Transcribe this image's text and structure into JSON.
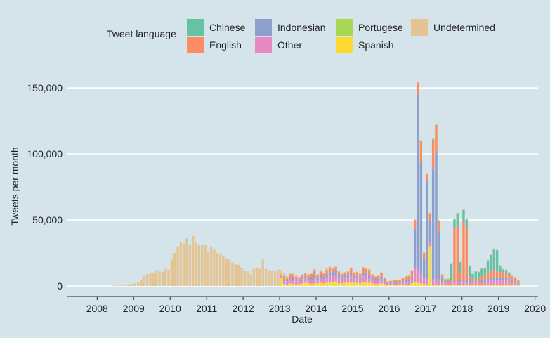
{
  "chart_data": {
    "type": "bar",
    "stacked": true,
    "xlabel": "Date",
    "ylabel": "Tweets per month",
    "ylim": [
      0,
      165000
    ],
    "yticks": [
      0,
      50000,
      100000,
      150000
    ],
    "ytick_labels": [
      "0",
      "50,000",
      "100,000",
      "150,000"
    ],
    "xlim": [
      "2007-03-01",
      "2020-02-01"
    ],
    "xticks": [
      "2008",
      "2009",
      "2010",
      "2011",
      "2012",
      "2013",
      "2014",
      "2015",
      "2016",
      "2017",
      "2018",
      "2019",
      "2020"
    ],
    "grid": "horizontal",
    "legend_title": "Tweet language",
    "legend_placement": "top",
    "series_order": [
      "Spanish",
      "Portugese",
      "Other",
      "Indonesian",
      "English",
      "Chinese",
      "Undetermined"
    ],
    "legend": [
      {
        "name": "Chinese",
        "color": "#66c2a5"
      },
      {
        "name": "English",
        "color": "#fc8d62"
      },
      {
        "name": "Indonesian",
        "color": "#8da0cb"
      },
      {
        "name": "Other",
        "color": "#e78ac3"
      },
      {
        "name": "Portugese",
        "color": "#a6d854"
      },
      {
        "name": "Spanish",
        "color": "#ffd92f"
      },
      {
        "name": "Undetermined",
        "color": "#e5c494"
      }
    ],
    "start_month": "2008-06",
    "monthly": [
      [
        0,
        0,
        0,
        0,
        0,
        0,
        400
      ],
      [
        0,
        0,
        0,
        0,
        0,
        0,
        500
      ],
      [
        0,
        0,
        0,
        0,
        0,
        0,
        700
      ],
      [
        0,
        0,
        0,
        0,
        0,
        0,
        900
      ],
      [
        0,
        0,
        0,
        0,
        0,
        0,
        1000
      ],
      [
        0,
        0,
        0,
        0,
        0,
        0,
        1200
      ],
      [
        0,
        0,
        0,
        0,
        0,
        0,
        1500
      ],
      [
        0,
        0,
        0,
        0,
        0,
        0,
        2000
      ],
      [
        0,
        0,
        0,
        0,
        0,
        0,
        3000
      ],
      [
        0,
        0,
        0,
        0,
        0,
        0,
        5000
      ],
      [
        0,
        0,
        0,
        0,
        0,
        0,
        7500
      ],
      [
        0,
        0,
        0,
        0,
        0,
        0,
        9000
      ],
      [
        0,
        0,
        0,
        0,
        0,
        0,
        10000
      ],
      [
        0,
        0,
        0,
        0,
        0,
        0,
        9500
      ],
      [
        0,
        0,
        0,
        0,
        0,
        0,
        12000
      ],
      [
        0,
        0,
        0,
        0,
        0,
        0,
        11000
      ],
      [
        0,
        0,
        0,
        0,
        0,
        0,
        10500
      ],
      [
        0,
        0,
        0,
        0,
        0,
        0,
        13000
      ],
      [
        0,
        0,
        0,
        0,
        0,
        0,
        12500
      ],
      [
        0,
        0,
        0,
        0,
        0,
        0,
        20000
      ],
      [
        0,
        0,
        0,
        0,
        0,
        0,
        25000
      ],
      [
        0,
        0,
        0,
        0,
        0,
        0,
        30000
      ],
      [
        0,
        0,
        0,
        0,
        0,
        0,
        33000
      ],
      [
        0,
        0,
        0,
        0,
        0,
        0,
        32000
      ],
      [
        0,
        0,
        0,
        0,
        0,
        0,
        36000
      ],
      [
        0,
        0,
        0,
        0,
        0,
        0,
        31000
      ],
      [
        0,
        0,
        0,
        0,
        0,
        0,
        38000
      ],
      [
        0,
        0,
        0,
        0,
        0,
        0,
        33000
      ],
      [
        0,
        0,
        0,
        0,
        0,
        0,
        31000
      ],
      [
        0,
        0,
        0,
        0,
        0,
        0,
        31000
      ],
      [
        0,
        0,
        0,
        0,
        0,
        0,
        31000
      ],
      [
        0,
        0,
        0,
        0,
        0,
        0,
        26000
      ],
      [
        0,
        0,
        0,
        0,
        0,
        0,
        30000
      ],
      [
        0,
        0,
        0,
        0,
        0,
        0,
        28000
      ],
      [
        0,
        0,
        0,
        0,
        0,
        0,
        25000
      ],
      [
        0,
        0,
        0,
        0,
        0,
        0,
        24000
      ],
      [
        0,
        0,
        0,
        0,
        0,
        0,
        23000
      ],
      [
        0,
        0,
        0,
        0,
        0,
        0,
        21000
      ],
      [
        0,
        0,
        0,
        0,
        0,
        0,
        20000
      ],
      [
        0,
        0,
        0,
        0,
        0,
        0,
        18000
      ],
      [
        0,
        0,
        0,
        0,
        0,
        0,
        17000
      ],
      [
        0,
        0,
        0,
        0,
        0,
        0,
        16000
      ],
      [
        0,
        0,
        0,
        0,
        0,
        0,
        14000
      ],
      [
        0,
        0,
        0,
        0,
        0,
        0,
        11500
      ],
      [
        0,
        0,
        0,
        0,
        0,
        0,
        11000
      ],
      [
        0,
        0,
        0,
        0,
        0,
        0,
        9000
      ],
      [
        0,
        0,
        0,
        0,
        0,
        0,
        13000
      ],
      [
        0,
        0,
        0,
        0,
        0,
        0,
        14000
      ],
      [
        0,
        0,
        0,
        0,
        0,
        0,
        13000
      ],
      [
        0,
        0,
        0,
        0,
        0,
        0,
        20000
      ],
      [
        0,
        0,
        0,
        0,
        0,
        0,
        13000
      ],
      [
        0,
        0,
        0,
        0,
        0,
        0,
        12000
      ],
      [
        0,
        0,
        0,
        0,
        0,
        0,
        11500
      ],
      [
        0,
        0,
        0,
        0,
        0,
        0,
        11000
      ],
      [
        0,
        0,
        0,
        0,
        0,
        0,
        12500
      ],
      [
        6000,
        0,
        1000,
        500,
        1000,
        0,
        3500
      ],
      [
        1500,
        0,
        2500,
        500,
        3000,
        0,
        2000
      ],
      [
        1000,
        0,
        2500,
        1000,
        2000,
        0,
        1000
      ],
      [
        2000,
        0,
        4000,
        1000,
        2000,
        0,
        1000
      ],
      [
        1500,
        0,
        3000,
        1500,
        2500,
        0,
        1000
      ],
      [
        1000,
        0,
        3000,
        1000,
        2000,
        0,
        1000
      ],
      [
        1500,
        0,
        2500,
        1000,
        1500,
        0,
        600
      ],
      [
        2000,
        0,
        4000,
        1000,
        1500,
        0,
        400
      ],
      [
        2500,
        0,
        4000,
        1000,
        2000,
        0,
        500
      ],
      [
        2000,
        0,
        3000,
        1000,
        2500,
        0,
        500
      ],
      [
        1500,
        0,
        3000,
        1500,
        2500,
        500,
        1000
      ],
      [
        2000,
        0,
        4000,
        2000,
        4000,
        0,
        1000
      ],
      [
        2000,
        0,
        3000,
        1500,
        2000,
        0,
        500
      ],
      [
        2500,
        0,
        4000,
        1500,
        3000,
        0,
        1000
      ],
      [
        2000,
        0,
        3500,
        1500,
        2500,
        0,
        500
      ],
      [
        2500,
        0,
        4000,
        2000,
        3500,
        0,
        1500
      ],
      [
        3000,
        0,
        5000,
        2500,
        3500,
        0,
        1000
      ],
      [
        3000,
        0,
        4500,
        3000,
        2500,
        0,
        500
      ],
      [
        3500,
        0,
        5000,
        3500,
        2500,
        0,
        500
      ],
      [
        2000,
        0,
        4000,
        2000,
        3000,
        0,
        500
      ],
      [
        2000,
        0,
        3500,
        1500,
        2000,
        0,
        500
      ],
      [
        2500,
        0,
        4000,
        1500,
        2000,
        0,
        500
      ],
      [
        2500,
        0,
        4000,
        1500,
        3000,
        0,
        500
      ],
      [
        3000,
        0,
        5000,
        2000,
        3500,
        0,
        500
      ],
      [
        2500,
        0,
        3500,
        1500,
        2500,
        0,
        500
      ],
      [
        2500,
        0,
        3500,
        1500,
        3000,
        0,
        500
      ],
      [
        2000,
        0,
        3000,
        1500,
        2500,
        0,
        500
      ],
      [
        3000,
        0,
        5000,
        2000,
        4000,
        0,
        500
      ],
      [
        3000,
        0,
        4500,
        2000,
        3500,
        0,
        500
      ],
      [
        2500,
        0,
        3500,
        2000,
        3500,
        500,
        1000
      ],
      [
        2000,
        0,
        3000,
        1500,
        2000,
        0,
        500
      ],
      [
        1500,
        0,
        2500,
        1500,
        1500,
        0,
        500
      ],
      [
        1500,
        0,
        2500,
        1500,
        2000,
        0,
        500
      ],
      [
        2000,
        0,
        3000,
        2000,
        3000,
        0,
        500
      ],
      [
        1500,
        0,
        2000,
        1000,
        1500,
        0,
        500
      ],
      [
        800,
        0,
        1000,
        500,
        1000,
        0,
        400
      ],
      [
        800,
        0,
        1200,
        600,
        1200,
        0,
        400
      ],
      [
        800,
        0,
        1200,
        600,
        1500,
        0,
        400
      ],
      [
        800,
        0,
        1500,
        700,
        1200,
        0,
        300
      ],
      [
        800,
        0,
        1500,
        700,
        1600,
        0,
        400
      ],
      [
        1000,
        0,
        2000,
        900,
        2000,
        0,
        300
      ],
      [
        1000,
        0,
        2500,
        1000,
        2500,
        0,
        500
      ],
      [
        1000,
        0,
        2500,
        1200,
        2800,
        0,
        500
      ],
      [
        2000,
        0,
        3000,
        2000,
        4500,
        0,
        500
      ],
      [
        3000,
        0,
        11000,
        29000,
        7000,
        0,
        1000
      ],
      [
        3000,
        0,
        10000,
        132000,
        9000,
        0,
        1000
      ],
      [
        2000,
        0,
        8000,
        84000,
        16000,
        0,
        500
      ],
      [
        1500,
        0,
        4000,
        15000,
        4500,
        0,
        500
      ],
      [
        1000,
        0,
        4000,
        75000,
        5000,
        0,
        500
      ],
      [
        30000,
        0,
        3000,
        16000,
        6000,
        0,
        500
      ],
      [
        1000,
        0,
        4000,
        84000,
        21000,
        1000,
        1000
      ],
      [
        1000,
        0,
        4000,
        96000,
        20000,
        1000,
        1000
      ],
      [
        1000,
        0,
        4000,
        36000,
        8000,
        0,
        1000
      ],
      [
        500,
        0,
        3000,
        3000,
        2000,
        0,
        500
      ],
      [
        500,
        0,
        1500,
        1000,
        1000,
        1000,
        500
      ],
      [
        500,
        0,
        2000,
        500,
        1000,
        1000,
        1000
      ],
      [
        500,
        0,
        2000,
        500,
        1000,
        13000,
        500
      ],
      [
        500,
        0,
        2000,
        1000,
        40000,
        7000,
        500
      ],
      [
        1000,
        0,
        3000,
        1000,
        40000,
        10000,
        500
      ],
      [
        500,
        0,
        3000,
        1500,
        5000,
        8000,
        500
      ],
      [
        500,
        0,
        3000,
        1000,
        45000,
        8000,
        1000
      ],
      [
        500,
        0,
        3000,
        1000,
        40000,
        6000,
        500
      ],
      [
        500,
        0,
        2500,
        1000,
        3000,
        8000,
        500
      ],
      [
        500,
        0,
        2000,
        1000,
        1500,
        4000,
        500
      ],
      [
        500,
        0,
        2000,
        1000,
        1500,
        6000,
        500
      ],
      [
        500,
        0,
        2000,
        1000,
        3000,
        4000,
        500
      ],
      [
        500,
        0,
        2500,
        1000,
        3000,
        6000,
        500
      ],
      [
        500,
        0,
        3000,
        1000,
        3000,
        6000,
        500
      ],
      [
        1000,
        0,
        4000,
        1500,
        4500,
        8000,
        1000
      ],
      [
        1000,
        0,
        4000,
        1500,
        5000,
        12000,
        1000
      ],
      [
        1000,
        0,
        4000,
        1500,
        6000,
        15000,
        1000
      ],
      [
        1000,
        0,
        3500,
        1500,
        5000,
        16000,
        1000
      ],
      [
        1000,
        0,
        3500,
        1500,
        4500,
        5000,
        500
      ],
      [
        1000,
        0,
        3500,
        1500,
        4500,
        2000,
        500
      ],
      [
        1000,
        0,
        3500,
        1500,
        4000,
        2000,
        500
      ],
      [
        1000,
        0,
        3000,
        1000,
        3500,
        1500,
        500
      ],
      [
        500,
        0,
        2500,
        1000,
        3000,
        500,
        500
      ],
      [
        500,
        0,
        2000,
        1000,
        2500,
        500,
        500
      ],
      [
        500,
        0,
        1500,
        500,
        1500,
        0,
        500
      ]
    ]
  }
}
